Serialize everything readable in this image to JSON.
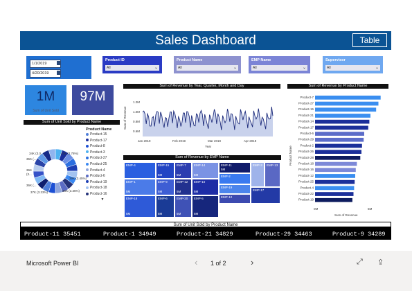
{
  "report": {
    "title": "Sales Dashboard",
    "table_button": "Table"
  },
  "dates": {
    "start": "1/1/2019",
    "end": "4/20/2019"
  },
  "slicers": [
    {
      "label": "Product ID",
      "value": "All",
      "bg": "#2a3bc4"
    },
    {
      "label": "Product Name",
      "value": "All",
      "bg": "#8e92cf"
    },
    {
      "label": "EMP Name",
      "value": "All",
      "bg": "#7b84d6"
    },
    {
      "label": "Supervisor",
      "value": "All",
      "bg": "#6fa8f0"
    }
  ],
  "kpis": [
    {
      "value": "1M",
      "label": "Sum of Unit Sold",
      "bg": "#2d86e0"
    },
    {
      "value": "97M",
      "label": "",
      "bg": "#3d4a9e"
    }
  ],
  "donut": {
    "title": "Sum of Unit Sold by Product Name",
    "legend_title": "Product Name",
    "labels": [
      "34K (3.0...",
      "35K (...",
      "36K",
      "(3...",
      "36K (...",
      "37K (3.33%)",
      "43K (3.78%)",
      "39K (3.45%)",
      "38K (3.35%)"
    ],
    "legend": [
      {
        "name": "Product-15",
        "color": "#4f7fd9"
      },
      {
        "name": "Product-17",
        "color": "#1a2e9c"
      },
      {
        "name": "Product-8",
        "color": "#1c4fd4"
      },
      {
        "name": "Product-3",
        "color": "#4fb2f0"
      },
      {
        "name": "Product-27",
        "color": "#2c6fe0"
      },
      {
        "name": "Product-25",
        "color": "#3a88f2"
      },
      {
        "name": "Product-4",
        "color": "#8fa5dc"
      },
      {
        "name": "Product-6",
        "color": "#5a6bc4"
      },
      {
        "name": "Product-19",
        "color": "#1d3fb4"
      },
      {
        "name": "Product-18",
        "color": "#a3c3f0"
      },
      {
        "name": "Product-16",
        "color": "#25337a"
      }
    ],
    "slices": [
      {
        "color": "#4fb2f0"
      },
      {
        "color": "#1a2e9c"
      },
      {
        "color": "#6c8fe6"
      },
      {
        "color": "#2c6fe0"
      },
      {
        "color": "#1d3fb4"
      },
      {
        "color": "#a3c3f0"
      },
      {
        "color": "#3a88f2"
      },
      {
        "color": "#25337a"
      },
      {
        "color": "#5a6bc4"
      },
      {
        "color": "#8fa5dc"
      },
      {
        "color": "#1c4fd4"
      },
      {
        "color": "#4f7fd9"
      },
      {
        "color": "#0f1f6e"
      },
      {
        "color": "#7fb8f4"
      },
      {
        "color": "#3552c8"
      },
      {
        "color": "#b8cdee"
      },
      {
        "color": "#2a44a8"
      },
      {
        "color": "#5f9ae8"
      },
      {
        "color": "#152a88"
      },
      {
        "color": "#90b4ee"
      }
    ]
  },
  "area_chart": {
    "title": "Sum of Revenue by Year, Quarter, Month and Day",
    "y_label": "Sum of Revenue",
    "x_label": "Year",
    "y_ticks": [
      "1.2M",
      "1.0M",
      "0.8M",
      "0.6M"
    ],
    "x_ticks": [
      "Jan 2019",
      "Feb 2019",
      "Mar 2019",
      "Apr 2019"
    ]
  },
  "treemap": {
    "title": "Sum of Revenue by EMP Name",
    "cells": [
      {
        "name": "EMP-4",
        "sub": "",
        "color": "#2a5fe0"
      },
      {
        "name": "EMP-15",
        "sub": "5M",
        "color": "#2244c4"
      },
      {
        "name": "EMP-7",
        "sub": "5M",
        "color": "#2b3db0"
      },
      {
        "name": "EMP-14",
        "sub": "5M",
        "color": "#7b93e4"
      },
      {
        "name": "EMP-11",
        "sub": "5M",
        "color": "#101b6a"
      },
      {
        "name": "EMP-3",
        "sub": "",
        "color": "#9fb3ea"
      },
      {
        "name": "EMP-13",
        "sub": "",
        "color": "#5a68c4"
      },
      {
        "name": "EMP-1",
        "sub": "5M",
        "color": "#4b7be8"
      },
      {
        "name": "EMP-9",
        "sub": "5M",
        "color": "#3e5ed4"
      },
      {
        "name": "EMP-12",
        "sub": "5M",
        "color": "#22318f"
      },
      {
        "name": "EMP-10",
        "sub": "5M",
        "color": "#1e2da6"
      },
      {
        "name": "EMP-2",
        "sub": "",
        "color": "#3a7af0"
      },
      {
        "name": "EMP-18",
        "sub": "5M",
        "color": "#2e5ad8"
      },
      {
        "name": "EMP-6",
        "sub": "5M",
        "color": "#1a3b96"
      },
      {
        "name": "EMP-20",
        "sub": "5M",
        "color": "#3f52b6"
      },
      {
        "name": "EMP-5",
        "sub": "5M",
        "color": "#16267c"
      },
      {
        "name": "EMP-19",
        "sub": "",
        "color": "#4c85ec"
      },
      {
        "name": "EMP-12",
        "sub": "",
        "color": "#3c4ab0"
      },
      {
        "name": "EMP-17",
        "sub": "",
        "color": "#233aa6"
      }
    ]
  },
  "bar_chart": {
    "title": "Sum of Revenue by Product Name",
    "y_label": "Product Name",
    "x_label": "Sum of Revenue",
    "x_ticks": [
      "0M",
      "5M"
    ],
    "chart_data": {
      "type": "bar",
      "categories": [
        "Product-7",
        "Product-27",
        "Product-15",
        "Product-21",
        "Product-14",
        "Product-17",
        "Product-6",
        "Product-29",
        "Product-2",
        "Product-26",
        "Product-28",
        "Product-18",
        "Product-16",
        "Product-12",
        "Product-25",
        "Product-4",
        "Product-22",
        "Product-19"
      ],
      "values": [
        5.8,
        5.6,
        5.4,
        4.9,
        4.8,
        4.7,
        4.35,
        4.3,
        4.15,
        4.1,
        4.0,
        3.7,
        3.6,
        3.55,
        3.5,
        3.45,
        3.4,
        3.3
      ],
      "colors": [
        "#3a8ef0",
        "#3a8ef0",
        "#3a8ef0",
        "#3a8ef0",
        "#1b2f9a",
        "#1b2f9a",
        "#5b6cc9",
        "#5b6cc9",
        "#1b2f9a",
        "#1b2f9a",
        "#0d1b5e",
        "#7c88d8",
        "#7c88d8",
        "#3a8ef0",
        "#1b2f9a",
        "#3a8ef0",
        "#1b2f9a",
        "#0d1b5e"
      ],
      "xlim": [
        0,
        6
      ]
    }
  },
  "ticker": {
    "title": "Sum of Unit Sold by Product Name",
    "items": [
      "Product-11 35451",
      "Product-1 34949",
      "Product-21 34829",
      "Product-29 34463",
      "Product-9 34289"
    ]
  },
  "footer": {
    "app_name": "Microsoft Power BI",
    "page": "1 of 2"
  }
}
